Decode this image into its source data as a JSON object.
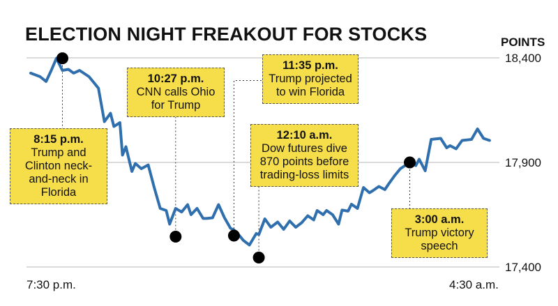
{
  "chart_data": {
    "type": "line",
    "title": "ELECTION NIGHT FREAKOUT FOR STOCKS",
    "ylabel": "POINTS",
    "ylim": [
      17400,
      18500
    ],
    "yticks": [
      {
        "value": 18400,
        "label": "18,400"
      },
      {
        "value": 17900,
        "label": "17,900"
      },
      {
        "value": 17400,
        "label": "17,400"
      }
    ],
    "x_labels": {
      "start": "7:30 p.m.",
      "end": "4:30 a.m."
    },
    "x_range": [
      0,
      540
    ],
    "series": [
      {
        "name": "Dow futures",
        "color": "#2f6fad",
        "x": [
          0,
          11,
          18,
          24,
          30,
          37,
          44,
          50,
          57,
          68,
          79,
          86,
          93,
          97,
          104,
          107,
          111,
          118,
          122,
          129,
          137,
          144,
          151,
          158,
          162,
          169,
          176,
          183,
          187,
          194,
          201,
          205,
          212,
          219,
          226,
          233,
          237,
          244,
          248,
          255,
          263,
          266,
          273,
          280,
          288,
          295,
          302,
          309,
          316,
          323,
          330,
          334,
          341,
          345,
          352,
          359,
          363,
          370,
          374,
          381,
          388,
          395,
          399,
          406,
          413,
          417,
          424,
          431,
          442,
          449,
          453,
          460,
          467,
          478,
          485,
          489,
          496,
          503,
          514,
          521,
          528,
          535
        ],
        "y": [
          18327,
          18310,
          18287,
          18340,
          18398,
          18340,
          18345,
          18327,
          18340,
          18310,
          18255,
          18095,
          18135,
          18072,
          18090,
          17935,
          17975,
          17857,
          17895,
          17870,
          17888,
          17780,
          17680,
          17670,
          17605,
          17680,
          17663,
          17698,
          17650,
          17680,
          17632,
          17632,
          17635,
          17698,
          17635,
          17585,
          17577,
          17547,
          17527,
          17505,
          17560,
          17555,
          17630,
          17590,
          17615,
          17580,
          17620,
          17590,
          17612,
          17645,
          17625,
          17670,
          17650,
          17670,
          17650,
          17605,
          17672,
          17667,
          17700,
          17680,
          17780,
          17755,
          17765,
          17785,
          17770,
          17795,
          17835,
          17870,
          17900,
          17885,
          17915,
          17860,
          18010,
          18015,
          17970,
          17980,
          17965,
          18005,
          18010,
          18060,
          18015,
          18005
        ]
      }
    ],
    "annotations": [
      {
        "time": "8:15 p.m.",
        "text": "Trump and Clinton neck-and-neck in Florida",
        "x": 37,
        "y": 18398
      },
      {
        "time": "10:27 p.m.",
        "text": "CNN calls Ohio for Trump",
        "x": 169,
        "y": 17545
      },
      {
        "time": "11:35 p.m.",
        "text": "Trump projected to win Florida",
        "x": 237,
        "y": 17550
      },
      {
        "time": "12:10 a.m.",
        "text": "Dow futures dive 870 points before trading-loss limits",
        "x": 266,
        "y": 17445
      },
      {
        "time": "3:00 a.m.",
        "text": "Trump victory speech",
        "x": 442,
        "y": 17900
      }
    ]
  }
}
